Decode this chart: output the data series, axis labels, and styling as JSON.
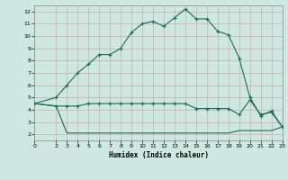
{
  "xlabel": "Humidex (Indice chaleur)",
  "bg_color": "#cce8e0",
  "grid_color_major": "#e8c8c8",
  "grid_color_minor": "#e0d0d0",
  "line_color": "#1a6b5a",
  "xlim": [
    0,
    23
  ],
  "ylim": [
    1.5,
    12.5
  ],
  "yticks": [
    2,
    3,
    4,
    5,
    6,
    7,
    8,
    9,
    10,
    11,
    12
  ],
  "xticks": [
    0,
    2,
    3,
    4,
    5,
    6,
    7,
    8,
    9,
    10,
    11,
    12,
    13,
    14,
    15,
    16,
    17,
    18,
    19,
    20,
    21,
    22,
    23
  ],
  "line1_x": [
    0,
    2,
    3,
    4,
    5,
    6,
    7,
    8,
    9,
    10,
    11,
    12,
    13,
    14,
    15,
    16,
    17,
    18,
    19,
    20,
    21,
    22,
    23
  ],
  "line1_y": [
    4.5,
    5.0,
    6.0,
    7.0,
    7.7,
    8.5,
    8.5,
    9.0,
    10.3,
    11.0,
    11.2,
    10.8,
    11.5,
    12.2,
    11.4,
    11.4,
    10.4,
    10.1,
    8.2,
    5.0,
    3.5,
    3.9,
    2.6
  ],
  "line2_x": [
    0,
    2,
    3,
    4,
    5,
    6,
    7,
    8,
    9,
    10,
    11,
    12,
    13,
    14,
    15,
    16,
    17,
    18,
    19,
    20,
    21,
    22,
    23
  ],
  "line2_y": [
    4.5,
    4.3,
    4.3,
    4.3,
    4.5,
    4.5,
    4.5,
    4.5,
    4.5,
    4.5,
    4.5,
    4.5,
    4.5,
    4.5,
    4.1,
    4.1,
    4.1,
    4.1,
    3.6,
    4.8,
    3.6,
    3.8,
    2.6
  ],
  "line3_x": [
    0,
    2,
    3,
    4,
    5,
    6,
    7,
    8,
    9,
    10,
    11,
    12,
    13,
    14,
    15,
    16,
    17,
    18,
    19,
    20,
    21,
    22,
    23
  ],
  "line3_y": [
    4.5,
    4.3,
    2.1,
    2.1,
    2.1,
    2.1,
    2.1,
    2.1,
    2.1,
    2.1,
    2.1,
    2.1,
    2.1,
    2.1,
    2.1,
    2.1,
    2.1,
    2.1,
    2.3,
    2.3,
    2.3,
    2.3,
    2.6
  ]
}
